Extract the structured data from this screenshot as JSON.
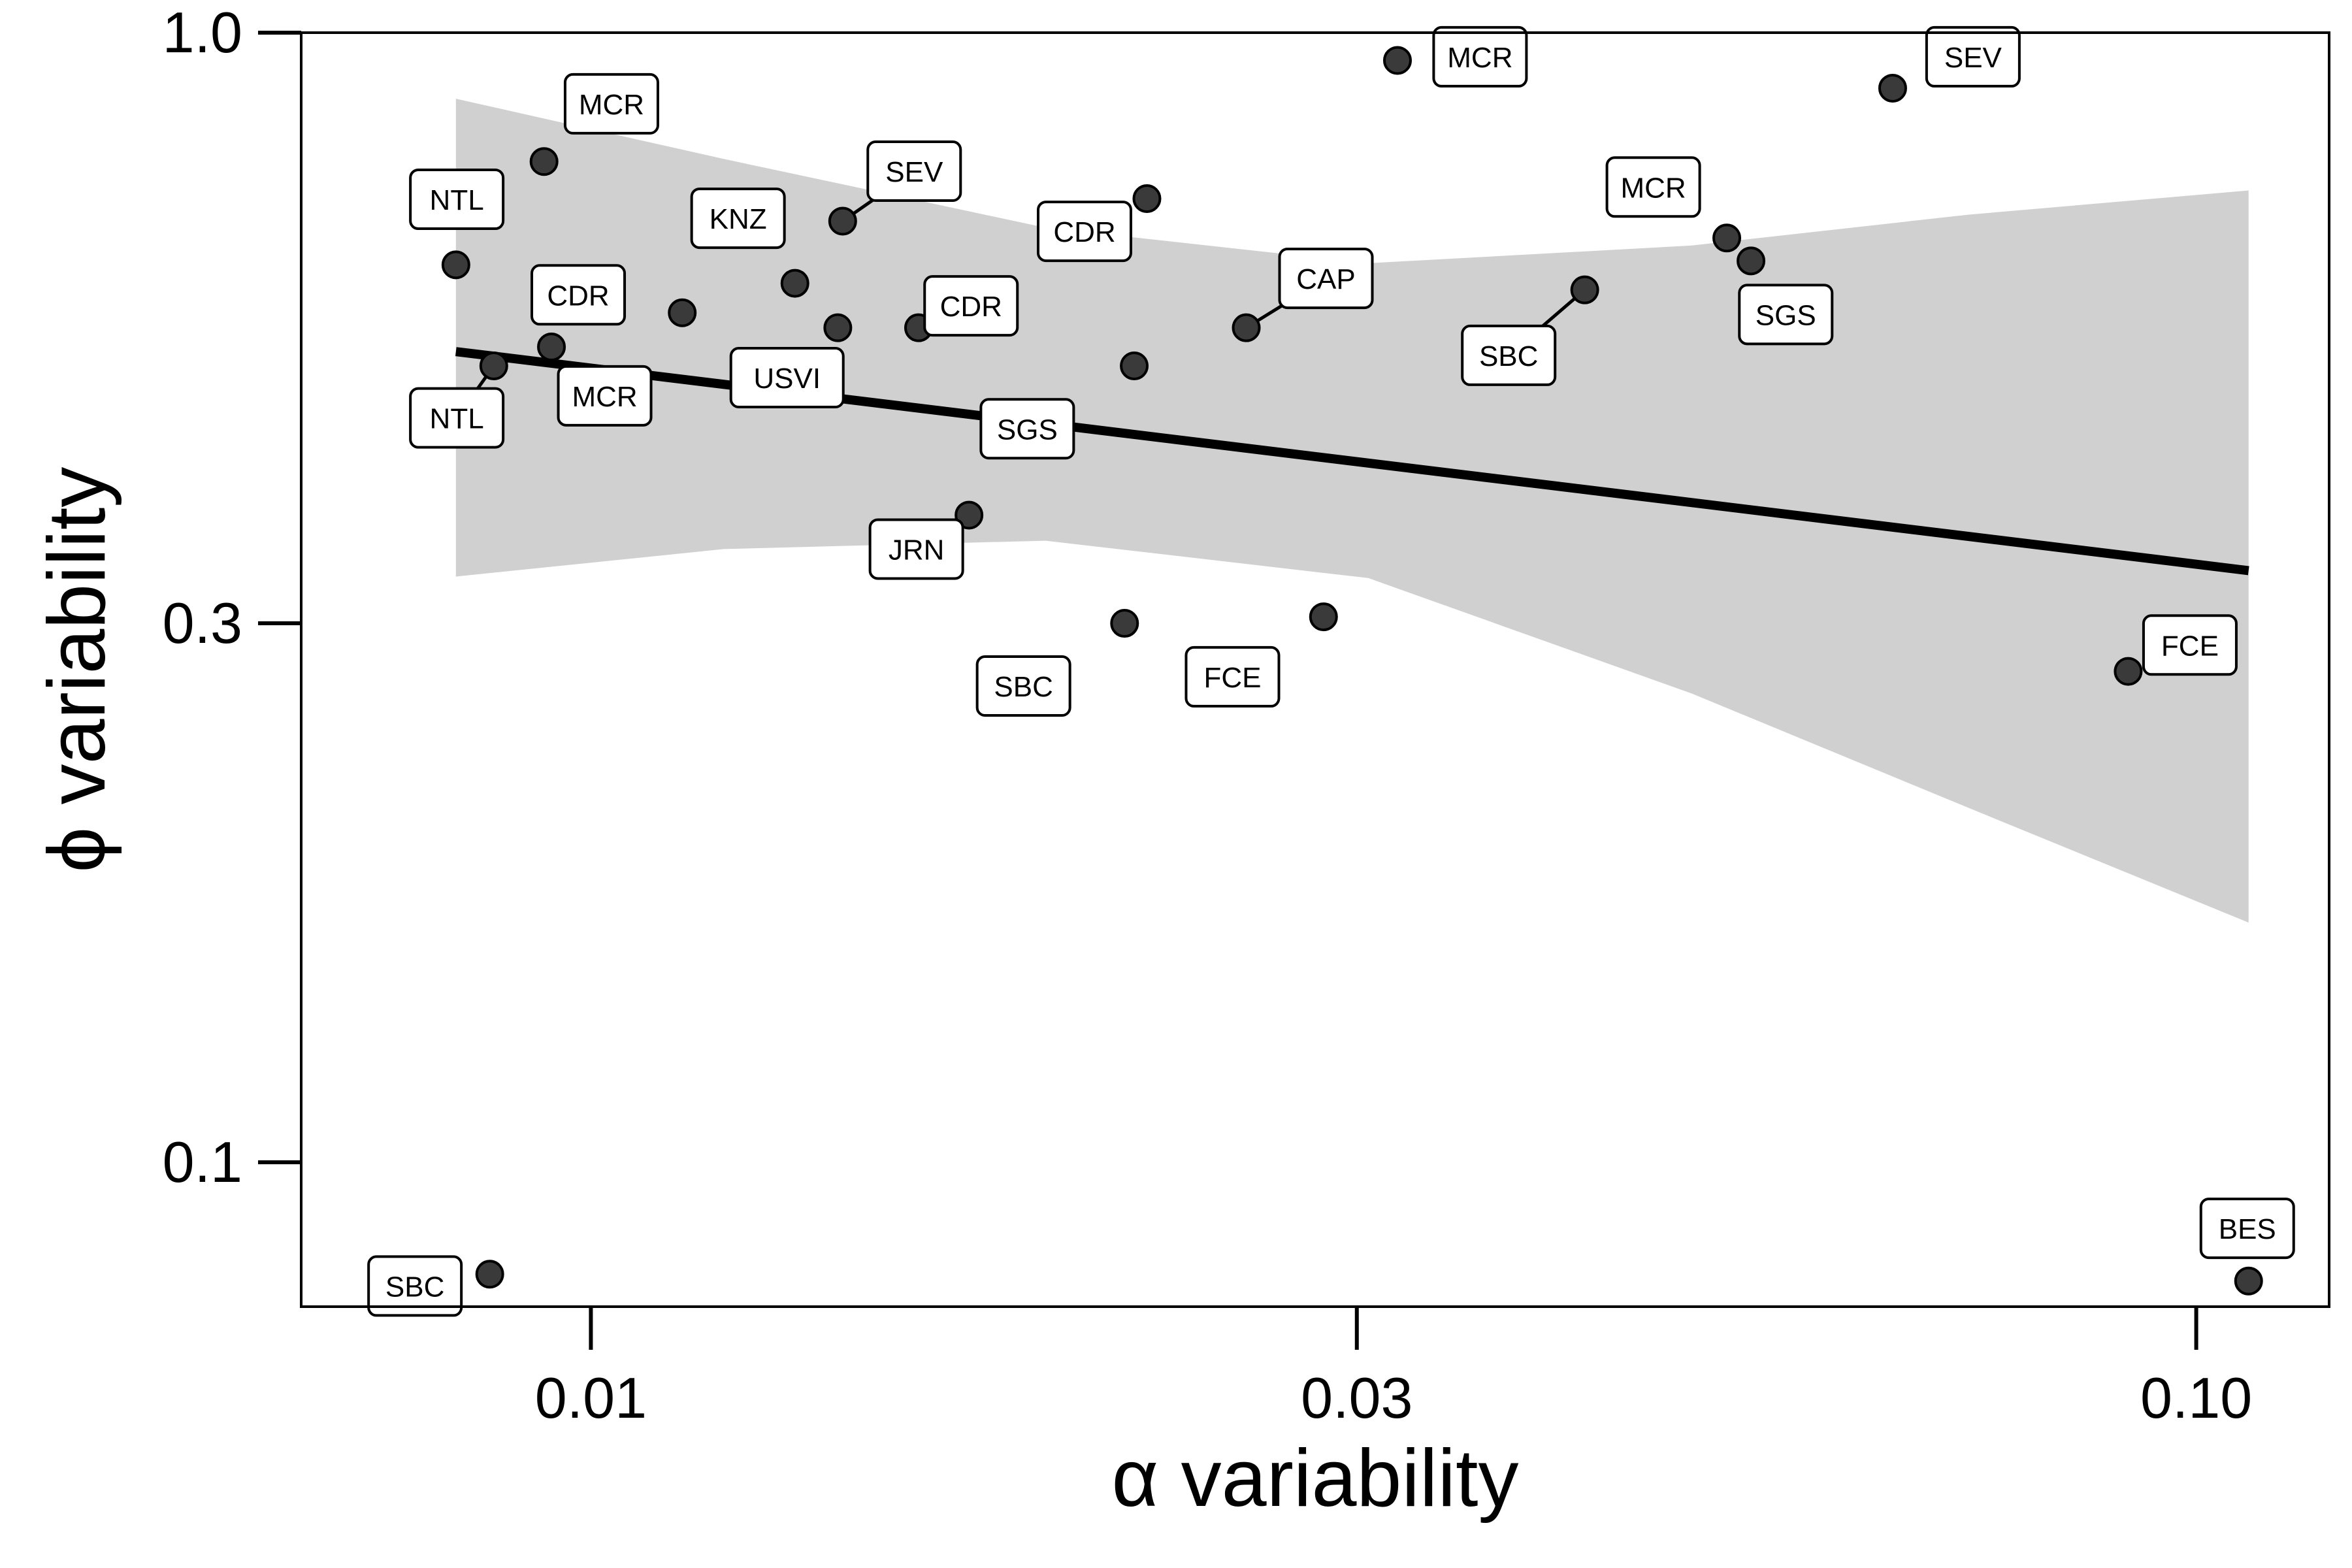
{
  "chart_data": {
    "type": "scatter",
    "xlabel": "α variability",
    "ylabel": "ϕ variability",
    "xscale": "log",
    "yscale": "log",
    "xlim": [
      0.0066,
      0.121
    ],
    "ylim": [
      0.0745,
      1.0
    ],
    "x_ticks": [
      {
        "value": 0.01,
        "label": "0.01"
      },
      {
        "value": 0.03,
        "label": "0.03"
      },
      {
        "value": 0.1,
        "label": "0.10"
      }
    ],
    "y_ticks": [
      {
        "value": 0.1,
        "label": "0.1"
      },
      {
        "value": 0.3,
        "label": "0.3"
      },
      {
        "value": 1.0,
        "label": "1.0"
      }
    ],
    "grid": false,
    "legend": "none",
    "colors": {
      "point": "#3a3a3a",
      "fit_line": "#000000",
      "confidence_band": "#d0d0d0",
      "label_box": "#ffffff"
    },
    "fit_line": {
      "x": [
        0.00824,
        0.1078
      ],
      "y": [
        0.522,
        0.334
      ]
    },
    "confidence_band": {
      "x": [
        0.00824,
        0.0121,
        0.0192,
        0.0305,
        0.0485,
        0.0721,
        0.1078
      ],
      "upper": [
        0.874,
        0.773,
        0.672,
        0.625,
        0.648,
        0.69,
        0.725
      ],
      "lower": [
        0.33,
        0.349,
        0.355,
        0.329,
        0.26,
        0.206,
        0.163
      ]
    },
    "points": [
      {
        "x": 0.00824,
        "y": 0.623,
        "label": "NTL",
        "label_pos": [
          0.00825,
          0.712
        ],
        "leader": false
      },
      {
        "x": 0.0087,
        "y": 0.507,
        "label": "NTL",
        "label_pos": [
          0.00825,
          0.456
        ],
        "leader": true
      },
      {
        "x": 0.00935,
        "y": 0.769,
        "label": "MCR",
        "label_pos": [
          0.0103,
          0.865
        ],
        "leader": false
      },
      {
        "x": 0.00945,
        "y": 0.527,
        "label": "CDR",
        "label_pos": [
          0.00982,
          0.586
        ],
        "leader": false
      },
      {
        "x": 0.0114,
        "y": 0.565,
        "label": "MCR",
        "label_pos": [
          0.0102,
          0.477
        ],
        "leader": false
      },
      {
        "x": 0.0134,
        "y": 0.6,
        "label": "KNZ",
        "label_pos": [
          0.01235,
          0.685
        ],
        "leader": false
      },
      {
        "x": 0.01435,
        "y": 0.681,
        "label": "SEV",
        "label_pos": [
          0.0159,
          0.754
        ],
        "leader": true
      },
      {
        "x": 0.01425,
        "y": 0.548,
        "label": "USVI",
        "label_pos": [
          0.01325,
          0.495
        ],
        "leader": false
      },
      {
        "x": 0.016,
        "y": 0.548,
        "label": "CDR",
        "label_pos": [
          0.01725,
          0.573
        ],
        "leader": false
      },
      {
        "x": 0.0172,
        "y": 0.374,
        "label": "JRN",
        "label_pos": [
          0.01595,
          0.349
        ],
        "leader": false
      },
      {
        "x": 0.0218,
        "y": 0.507,
        "label": "SGS",
        "label_pos": [
          0.0187,
          0.446
        ],
        "leader": false
      },
      {
        "x": 0.0222,
        "y": 0.713,
        "label": "CDR",
        "label_pos": [
          0.0203,
          0.667
        ],
        "leader": false
      },
      {
        "x": 0.0215,
        "y": 0.3,
        "label": "SBC",
        "label_pos": [
          0.0186,
          0.264
        ],
        "leader": false
      },
      {
        "x": 0.0256,
        "y": 0.548,
        "label": "CAP",
        "label_pos": [
          0.0287,
          0.606
        ],
        "leader": true
      },
      {
        "x": 0.0286,
        "y": 0.304,
        "label": "FCE",
        "label_pos": [
          0.0251,
          0.269
        ],
        "leader": false
      },
      {
        "x": 0.0318,
        "y": 0.945,
        "label": "MCR",
        "label_pos": [
          0.0358,
          0.952
        ],
        "leader": false
      },
      {
        "x": 0.0416,
        "y": 0.592,
        "label": "SBC",
        "label_pos": [
          0.0373,
          0.518
        ],
        "leader": true
      },
      {
        "x": 0.051,
        "y": 0.658,
        "label": "MCR",
        "label_pos": [
          0.0459,
          0.73
        ],
        "leader": false
      },
      {
        "x": 0.0528,
        "y": 0.628,
        "label": "SGS",
        "label_pos": [
          0.0555,
          0.563
        ],
        "leader": false
      },
      {
        "x": 0.0647,
        "y": 0.893,
        "label": "SEV",
        "label_pos": [
          0.0726,
          0.952
        ],
        "leader": false
      },
      {
        "x": 0.0907,
        "y": 0.272,
        "label": "FCE",
        "label_pos": [
          0.0991,
          0.287
        ],
        "leader": false
      },
      {
        "x": 0.00865,
        "y": 0.0796,
        "label": "SBC",
        "label_pos": [
          0.00777,
          0.0777
        ],
        "leader": false
      },
      {
        "x": 0.1078,
        "y": 0.0785,
        "label": "BES",
        "label_pos": [
          0.1076,
          0.0874
        ],
        "leader": false
      }
    ]
  }
}
